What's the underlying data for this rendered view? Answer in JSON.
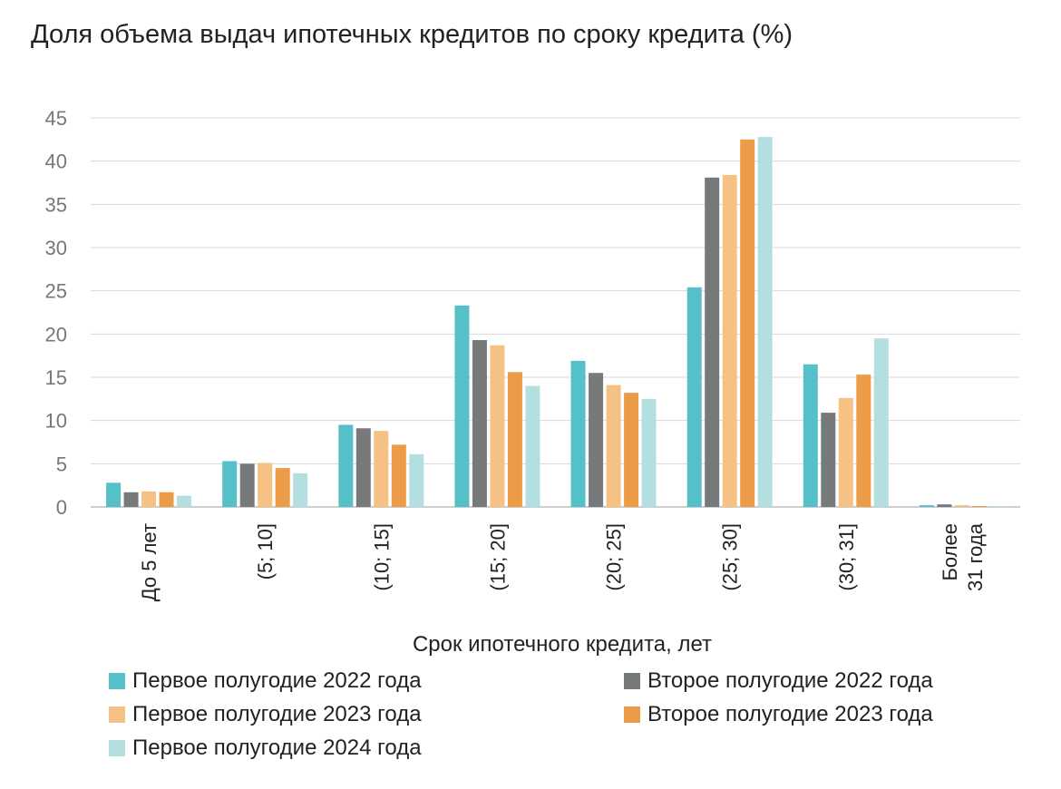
{
  "chart_data": {
    "type": "bar",
    "title": "Доля объема выдач ипотечных кредитов по сроку кредита (%)",
    "xlabel": "Срок ипотечного кредита, лет",
    "ylabel": "",
    "ylim": [
      0,
      45
    ],
    "yticks": [
      0,
      5,
      10,
      15,
      20,
      25,
      30,
      35,
      40,
      45
    ],
    "grid": true,
    "legend_position": "bottom",
    "categories": [
      "До 5 лет",
      "(5; 10]",
      "(10; 15]",
      "(15; 20]",
      "(20; 25]",
      "(25; 30]",
      "(30; 31]",
      "Более 31 года"
    ],
    "series": [
      {
        "name": "Первое полугодие 2022 года",
        "color": "#56c0c8",
        "values": [
          2.8,
          5.3,
          9.5,
          23.3,
          16.9,
          25.4,
          16.5,
          0.2
        ]
      },
      {
        "name": "Второе полугодие 2022 года",
        "color": "#767a7b",
        "values": [
          1.7,
          5.0,
          9.1,
          19.3,
          15.5,
          38.1,
          10.9,
          0.3
        ]
      },
      {
        "name": "Первое полугодие 2023 года",
        "color": "#f5c185",
        "values": [
          1.8,
          5.1,
          8.8,
          18.7,
          14.1,
          38.4,
          12.6,
          0.2
        ]
      },
      {
        "name": "Второе полугодие 2023 года",
        "color": "#ec9b46",
        "values": [
          1.7,
          4.5,
          7.2,
          15.6,
          13.2,
          42.5,
          15.3,
          0.1
        ]
      },
      {
        "name": "Первое полугодие 2024 года",
        "color": "#b3dfe1",
        "values": [
          1.3,
          3.9,
          6.1,
          14.0,
          12.5,
          42.8,
          19.5,
          0.1
        ]
      }
    ]
  }
}
